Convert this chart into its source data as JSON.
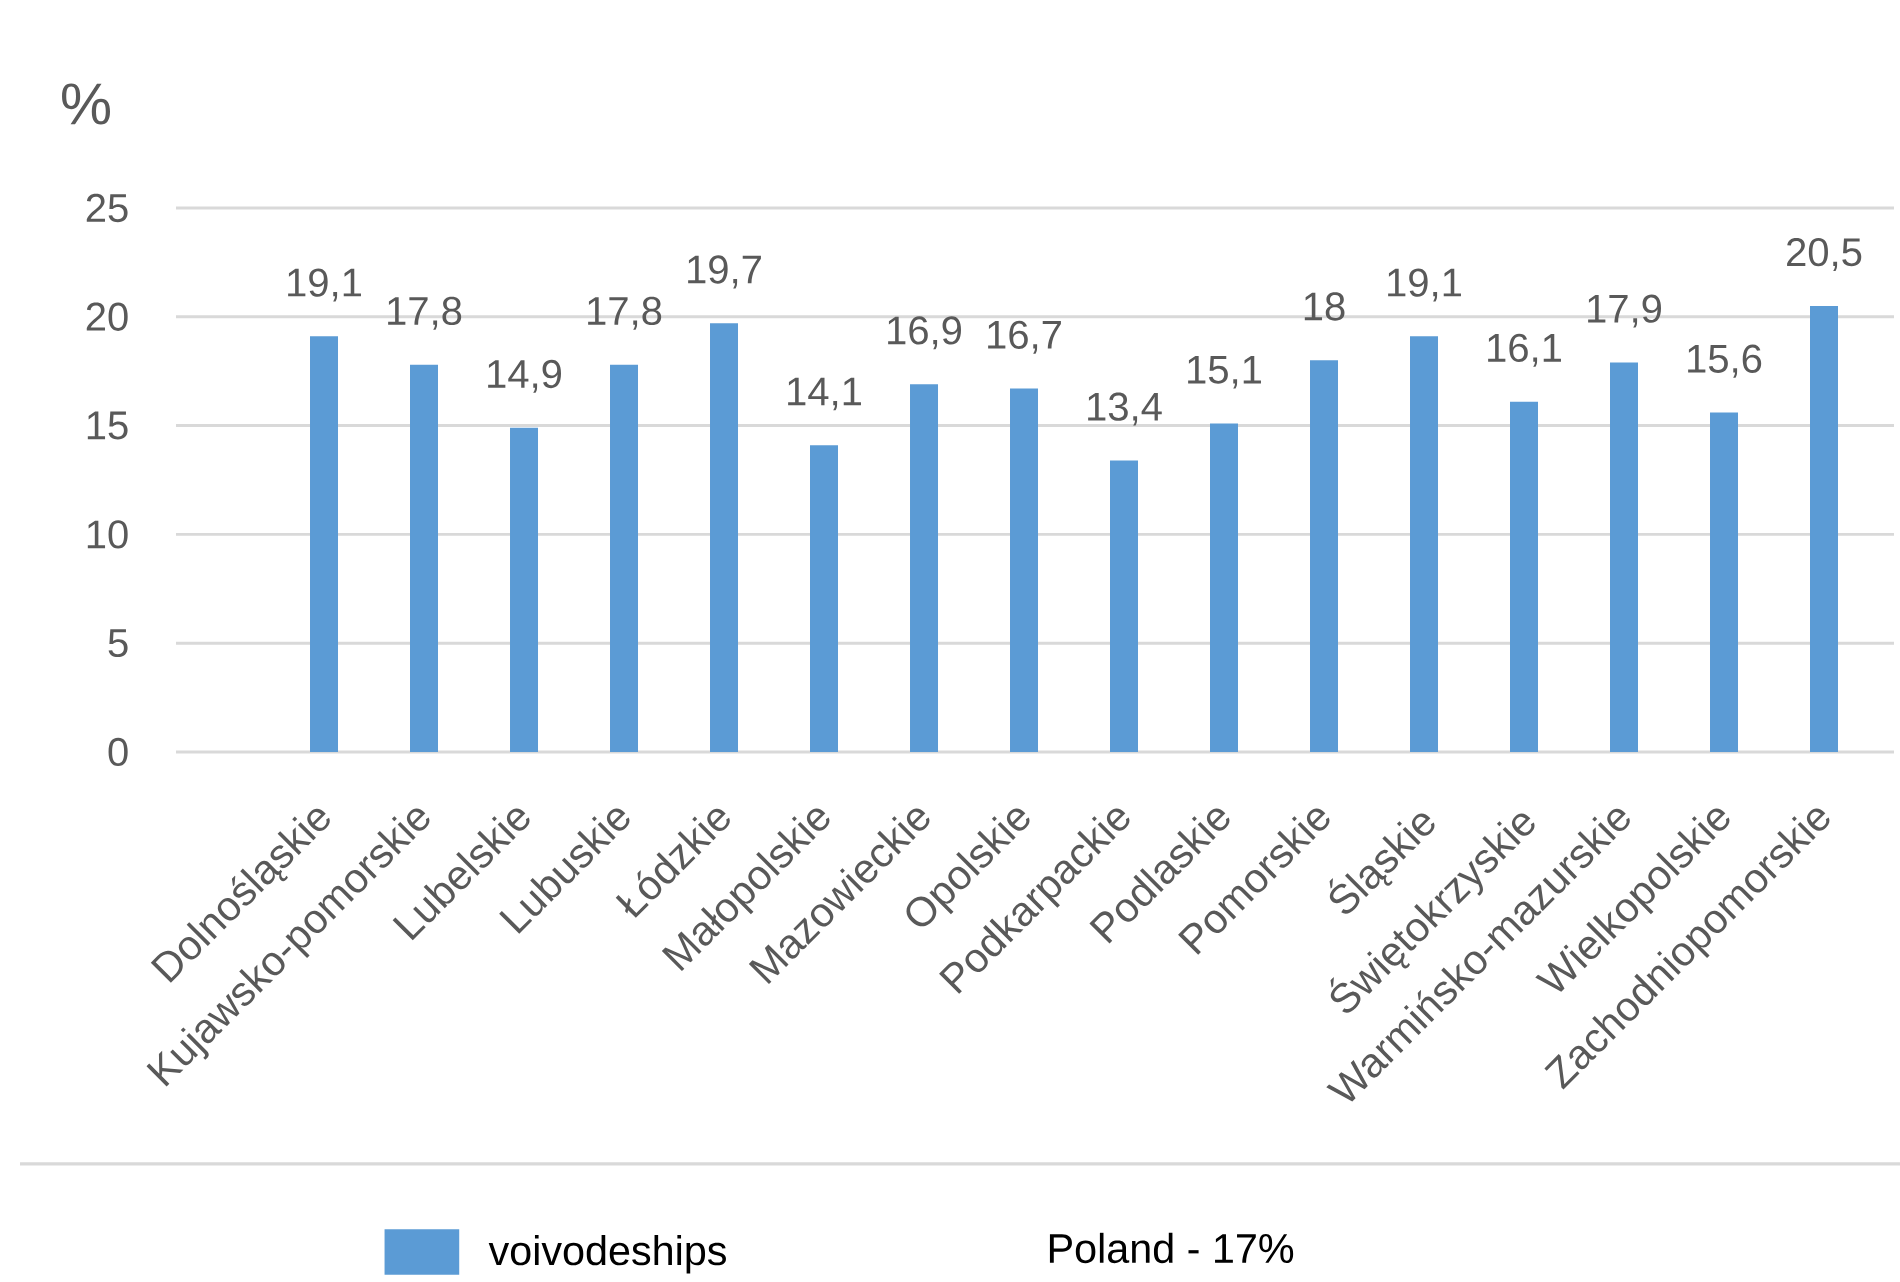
{
  "chart_data": {
    "type": "bar",
    "ylabel": "%",
    "categories": [
      "Dolnośląskie",
      "Kujawsko-pomorskie",
      "Lubelskie",
      "Lubuskie",
      "Łódzkie",
      "Małopolskie",
      "Mazowieckie",
      "Opolskie",
      "Podkarpackie",
      "Podlaskie",
      "Pomorskie",
      "Śląskie",
      "Świętokrzyskie",
      "Warmińsko-mazurskie",
      "Wielkopolskie",
      "Zachodniopomorskie"
    ],
    "series": [
      {
        "name": "voivodeships",
        "color": "#5b9bd5",
        "values": [
          19.1,
          17.8,
          14.9,
          17.8,
          19.7,
          14.1,
          16.9,
          16.7,
          13.4,
          15.1,
          18,
          19.1,
          16.1,
          17.9,
          15.6,
          20.5
        ],
        "value_labels": [
          "19,1",
          "17,8",
          "14,9",
          "17,8",
          "19,7",
          "14,1",
          "16,9",
          "16,7",
          "13,4",
          "15,1",
          "18",
          "19,1",
          "16,1",
          "17,9",
          "15,6",
          "20,5"
        ]
      }
    ],
    "ylim": [
      0,
      25
    ],
    "yticks": [
      0,
      5,
      10,
      15,
      20,
      25
    ],
    "grid": "y",
    "legend": "bottom",
    "annotations": [
      "Poland - 17%"
    ]
  }
}
